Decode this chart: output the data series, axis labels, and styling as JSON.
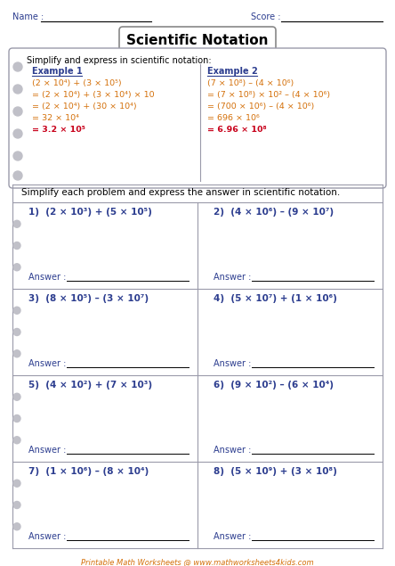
{
  "title": "Scientific Notation",
  "name_label": "Name :",
  "score_label": "Score :",
  "example_header": "Simplify and express in scientific notation:",
  "example1_title": "Example 1",
  "example1_lines": [
    "(2 × 10⁴) + (3 × 10⁵)",
    "= (2 × 10⁴) + (3 × 10⁴) × 10",
    "= (2 × 10⁴) + (30 × 10⁴)",
    "= 32 × 10⁴",
    "= 3.2 × 10⁵"
  ],
  "example2_title": "Example 2",
  "example2_lines": [
    "(7 × 10⁸) – (4 × 10⁶)",
    "= (7 × 10⁸) × 10² – (4 × 10⁶)",
    "= (700 × 10⁶) – (4 × 10⁶)",
    "= 696 × 10⁶",
    "= 6.96 × 10⁸"
  ],
  "instruction": "Simplify each problem and express the answer in scientific notation.",
  "problems": [
    [
      "1)  (2 × 10³) + (5 × 10⁵)",
      "2)  (4 × 10⁶) – (9 × 10⁷)"
    ],
    [
      "3)  (8 × 10⁵) – (3 × 10⁷)",
      "4)  (5 × 10⁷) + (1 × 10⁶)"
    ],
    [
      "5)  (4 × 10²) + (7 × 10³)",
      "6)  (9 × 10²) – (6 × 10⁴)"
    ],
    [
      "7)  (1 × 10⁶) – (8 × 10⁴)",
      "8)  (5 × 10⁹) + (3 × 10⁸)"
    ]
  ],
  "answer_label": "Answer :",
  "footer": "Printable Math Worksheets @ www.mathworksheets4kids.com",
  "bg_color": "#ffffff",
  "navy_color": "#2c3d8f",
  "orange_color": "#d4700a",
  "red_color": "#c8001a",
  "footer_color": "#d4700a",
  "border_color": "#9a9aaa",
  "binder_color": "#c0c0c8",
  "line_color": "#000000",
  "title_border_color": "#888888"
}
